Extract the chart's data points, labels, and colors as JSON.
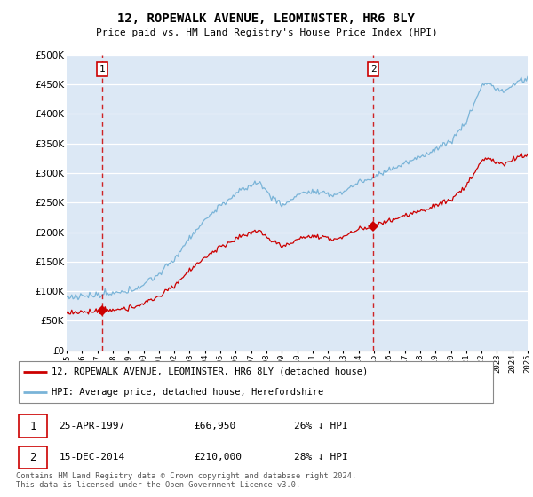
{
  "title": "12, ROPEWALK AVENUE, LEOMINSTER, HR6 8LY",
  "subtitle": "Price paid vs. HM Land Registry's House Price Index (HPI)",
  "legend_line1": "12, ROPEWALK AVENUE, LEOMINSTER, HR6 8LY (detached house)",
  "legend_line2": "HPI: Average price, detached house, Herefordshire",
  "sale1_date": "25-APR-1997",
  "sale1_price": "£66,950",
  "sale1_hpi": "26% ↓ HPI",
  "sale1_year": 1997.31,
  "sale1_value": 66950,
  "sale2_date": "15-DEC-2014",
  "sale2_price": "£210,000",
  "sale2_hpi": "28% ↓ HPI",
  "sale2_year": 2014.96,
  "sale2_value": 210000,
  "hpi_color": "#7ab4d8",
  "price_color": "#cc0000",
  "dashed_color": "#cc0000",
  "bg_color": "#dce8f5",
  "footer": "Contains HM Land Registry data © Crown copyright and database right 2024.\nThis data is licensed under the Open Government Licence v3.0.",
  "ylim": [
    0,
    500000
  ],
  "yticks": [
    0,
    50000,
    100000,
    150000,
    200000,
    250000,
    300000,
    350000,
    400000,
    450000,
    500000
  ],
  "xstart": 1995,
  "xend": 2025
}
